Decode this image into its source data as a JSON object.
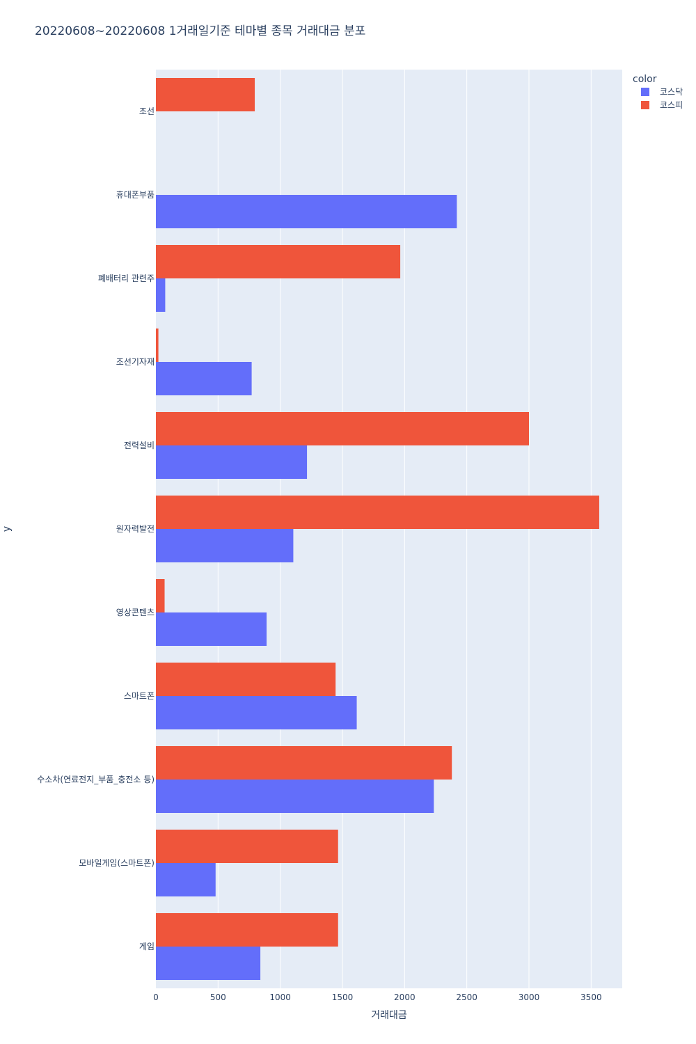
{
  "chart_data": {
    "type": "bar",
    "orientation": "horizontal",
    "title": "20220608~20220608 1거래일기준 테마별 종목 거래대금 분포",
    "xlabel": "거래대금",
    "ylabel": "y",
    "xlim": [
      0,
      3750
    ],
    "xticks": [
      0,
      500,
      1000,
      1500,
      2000,
      2500,
      3000,
      3500
    ],
    "grid": true,
    "legend_title": "color",
    "legend_position": "top-right",
    "categories": [
      "조선",
      "휴대폰부품",
      "폐배터리 관련주",
      "조선기자재",
      "전력설비",
      "원자력발전",
      "영상콘텐츠",
      "스마트폰",
      "수소차(연료전지_부품_충전소 등)",
      "모바일게임(스마트폰)",
      "게임"
    ],
    "series": [
      {
        "name": "코스닥",
        "color": "#636efa",
        "values": [
          null,
          2420,
          75,
          770,
          1215,
          1105,
          890,
          1615,
          2235,
          480,
          840
        ]
      },
      {
        "name": "코스피",
        "color": "#ef553b",
        "values": [
          795,
          null,
          1965,
          20,
          3000,
          3565,
          70,
          1445,
          2380,
          1465,
          1465
        ]
      }
    ]
  }
}
